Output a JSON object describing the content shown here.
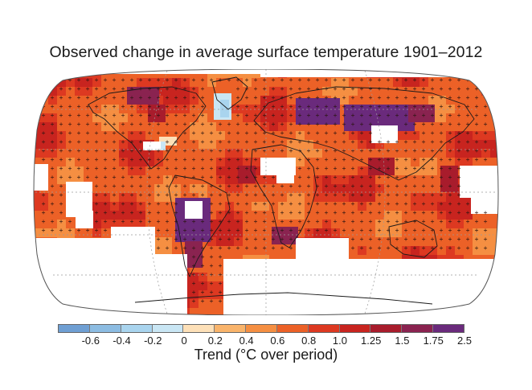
{
  "title": "Observed change in average surface temperature 1901–2012",
  "legend": {
    "label": "Trend (°C over period)",
    "ticks": [
      "-0.6",
      "-0.4",
      "-0.2",
      "0",
      "0.2",
      "0.4",
      "0.6",
      "0.8",
      "1.0",
      "1.25",
      "1.5",
      "1.75",
      "2.5"
    ],
    "colors": [
      "#6f9fd3",
      "#8cbce2",
      "#a9d4ee",
      "#c9e6f4",
      "#fde0b8",
      "#f9b46b",
      "#f58f42",
      "#ec6127",
      "#dd3921",
      "#c8241f",
      "#a81c2c",
      "#8a2350",
      "#6a2a7c"
    ]
  },
  "map": {
    "projection": "robinson",
    "significance_marker": "+",
    "colors": {
      "ocean_frame": "#ffffff",
      "no_data": "#ffffff",
      "coastline": "#1a1a1a",
      "graticule": "#9a9a9a",
      "marker": "#2a1410"
    }
  }
}
